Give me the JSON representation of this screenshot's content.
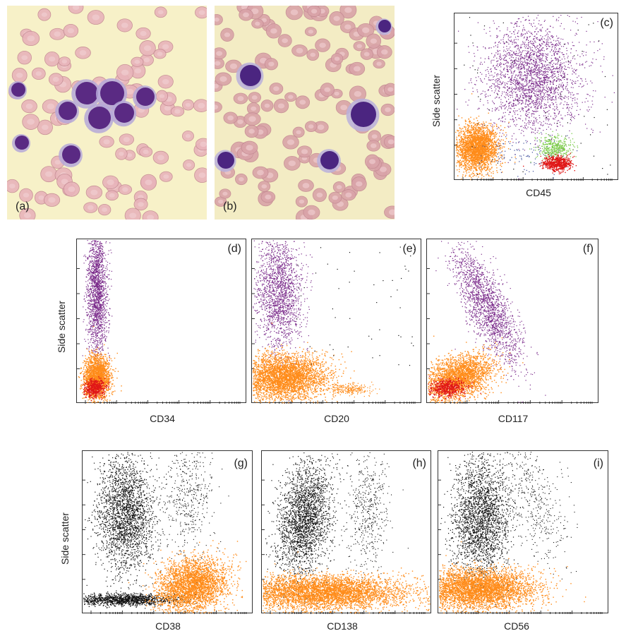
{
  "micrographs": [
    {
      "tag": "(a)",
      "bg": "#f7f1c8",
      "rbc": "#e8b4ba",
      "nucleus": "#5a2a83",
      "cyto": "#b5a8d8"
    },
    {
      "tag": "(b)",
      "bg": "#f3ecc4",
      "rbc": "#d9a3a8",
      "nucleus": "#4b2580",
      "cyto": "#b9b0dc"
    }
  ],
  "panels": [
    {
      "id": "c",
      "tag": "(c)",
      "xlabel": "CD45",
      "ylabel": "Side scatter"
    },
    {
      "id": "d",
      "tag": "(d)",
      "xlabel": "CD34",
      "ylabel": "Side scatter"
    },
    {
      "id": "e",
      "tag": "(e)",
      "xlabel": "CD20",
      "ylabel": ""
    },
    {
      "id": "f",
      "tag": "(f)",
      "xlabel": "CD117",
      "ylabel": ""
    },
    {
      "id": "g",
      "tag": "(g)",
      "xlabel": "CD38",
      "ylabel": "Side scatter"
    },
    {
      "id": "h",
      "tag": "(h)",
      "xlabel": "CD138",
      "ylabel": ""
    },
    {
      "id": "i",
      "tag": "(i)",
      "xlabel": "CD56",
      "ylabel": ""
    }
  ],
  "colors": {
    "purple": "#7a2a8a",
    "orange": "#ff8c1a",
    "red": "#e01818",
    "green": "#7ccc4a",
    "blue": "#3a4a9a",
    "black": "#111111"
  }
}
